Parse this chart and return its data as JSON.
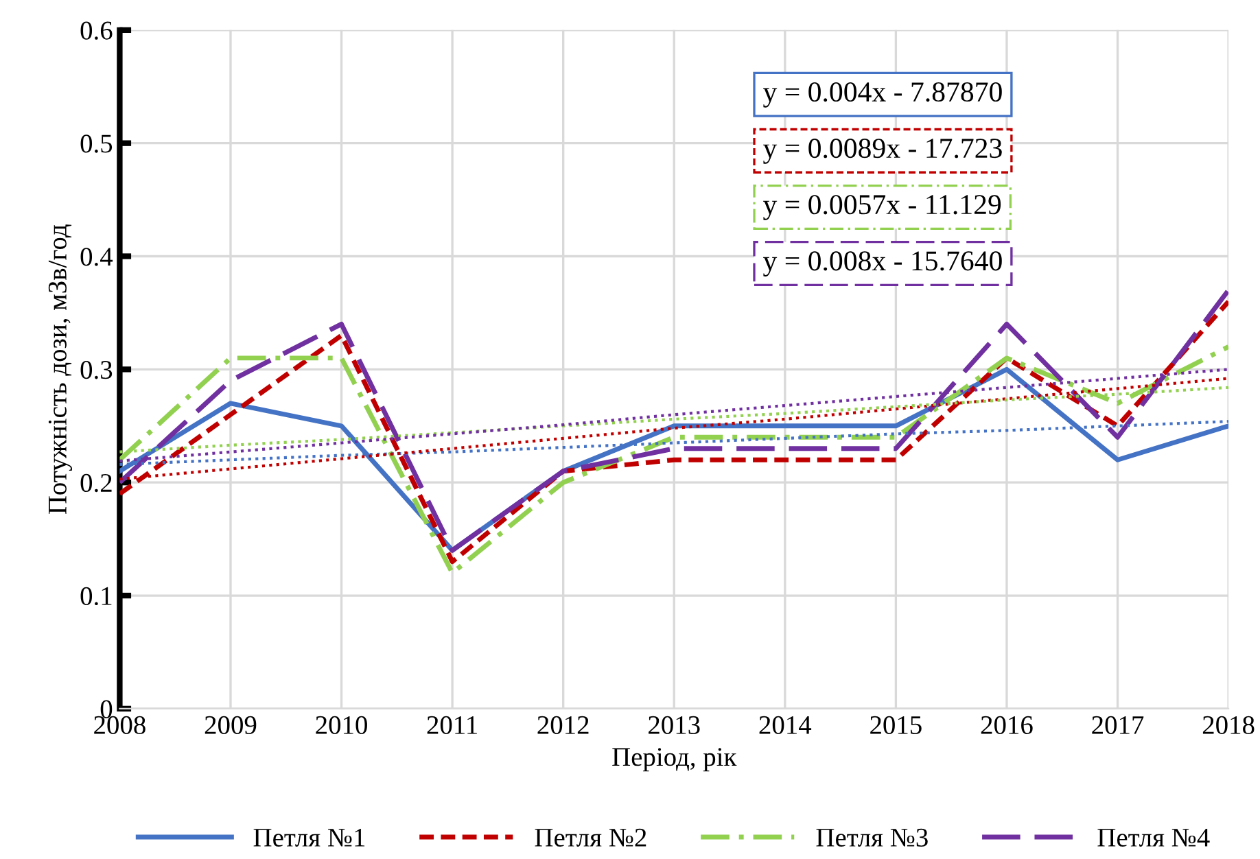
{
  "chart_data": {
    "type": "line",
    "xlabel": "Період, рік",
    "ylabel": "Потужність дози, мЗв/год",
    "x": [
      2008,
      2009,
      2010,
      2011,
      2012,
      2013,
      2014,
      2015,
      2016,
      2017,
      2018
    ],
    "series": [
      {
        "name": "Петля №1",
        "color": "#4472c4",
        "line_style": "solid",
        "values": [
          0.21,
          0.27,
          0.25,
          0.14,
          0.21,
          0.25,
          0.25,
          0.25,
          0.3,
          0.22,
          0.25
        ]
      },
      {
        "name": "Петля №2",
        "color": "#c00000",
        "line_style": "dashed",
        "values": [
          0.19,
          0.26,
          0.33,
          0.13,
          0.21,
          0.22,
          0.22,
          0.22,
          0.31,
          0.25,
          0.36
        ]
      },
      {
        "name": "Петля №3",
        "color": "#92d050",
        "line_style": "dashdot",
        "values": [
          0.22,
          0.31,
          0.31,
          0.12,
          0.2,
          0.24,
          0.24,
          0.24,
          0.31,
          0.27,
          0.32
        ]
      },
      {
        "name": "Петля №4",
        "color": "#7030a0",
        "line_style": "longdash",
        "values": [
          0.2,
          0.29,
          0.34,
          0.14,
          0.21,
          0.23,
          0.23,
          0.23,
          0.34,
          0.24,
          0.37
        ]
      },
      {
        "type": "line",
        "color": "#4472c4",
        "line_style": "dotted",
        "values": [
          0.216,
          0.22,
          0.224,
          0.227,
          0.231,
          0.235,
          0.239,
          0.243,
          0.246,
          0.25,
          0.254
        ]
      },
      {
        "type": "line",
        "color": "#c00000",
        "line_style": "dotted",
        "values": [
          0.203,
          0.212,
          0.221,
          0.23,
          0.239,
          0.248,
          0.256,
          0.265,
          0.274,
          0.283,
          0.292
        ]
      },
      {
        "type": "line",
        "color": "#92d050",
        "line_style": "dotted",
        "values": [
          0.227,
          0.233,
          0.238,
          0.244,
          0.25,
          0.256,
          0.261,
          0.267,
          0.273,
          0.278,
          0.284
        ]
      },
      {
        "type": "line",
        "color": "#7030a0",
        "line_style": "dotted",
        "values": [
          0.219,
          0.227,
          0.235,
          0.243,
          0.251,
          0.26,
          0.268,
          0.276,
          0.284,
          0.292,
          0.3
        ]
      }
    ],
    "annotations": [
      "y = 0.004x - 7.87870",
      "y = 0.0089x - 17.723",
      "y = 0.0057x - 11.129",
      "y = 0.008x - 15.7640"
    ],
    "xlim": [
      2008,
      2018
    ],
    "xticks": [
      2008,
      2009,
      2010,
      2011,
      2012,
      2013,
      2014,
      2015,
      2016,
      2017,
      2018
    ],
    "ylim": [
      0,
      0.6
    ],
    "yticks": [
      {
        "value": 0,
        "label": "0"
      },
      0.1,
      0.2,
      0.3,
      0.4,
      0.5,
      0.6
    ],
    "grid": true,
    "legend": "bottom",
    "marker": "none"
  }
}
